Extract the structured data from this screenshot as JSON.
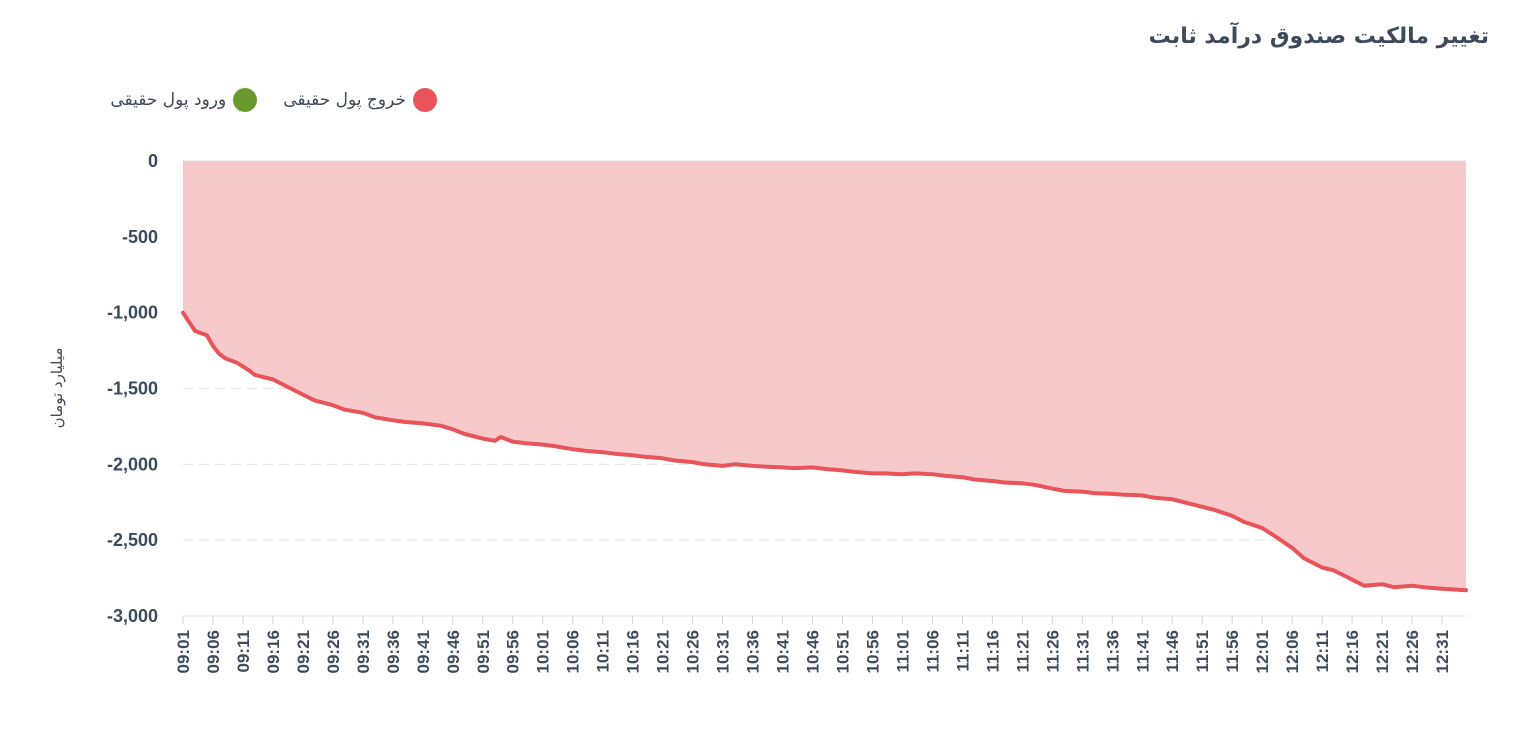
{
  "chart_data": {
    "type": "area",
    "title": "تغییر مالکیت صندوق درآمد ثابت",
    "ylabel": "میلیارد تومان",
    "xlabel": "",
    "ylim": [
      -3000,
      0
    ],
    "yticks": [
      0,
      -500,
      -1000,
      -1500,
      -2000,
      -2500,
      -3000
    ],
    "ytick_labels": [
      "0",
      "-500",
      "-1,000",
      "-1,500",
      "-2,000",
      "-2,500",
      "-3,000"
    ],
    "grid": true,
    "legend_position": "top-left",
    "x_start": "09:01",
    "x_end": "12:35",
    "x_tick_labels": [
      "09:01",
      "09:06",
      "09:11",
      "09:16",
      "09:21",
      "09:26",
      "09:31",
      "09:36",
      "09:41",
      "09:46",
      "09:51",
      "09:56",
      "10:01",
      "10:06",
      "10:11",
      "10:16",
      "10:21",
      "10:26",
      "10:31",
      "10:36",
      "10:41",
      "10:46",
      "10:51",
      "10:56",
      "11:01",
      "11:06",
      "11:11",
      "11:16",
      "11:21",
      "11:26",
      "11:31",
      "11:36",
      "11:41",
      "11:46",
      "11:51",
      "11:56",
      "12:01",
      "12:06",
      "12:11",
      "12:16",
      "12:21",
      "12:26",
      "12:31"
    ],
    "series": [
      {
        "name": "خروج پول حقیقی",
        "color": "#e8545a",
        "fill": "#f7c9ca",
        "x": [
          "09:01",
          "09:02",
          "09:03",
          "09:05",
          "09:06",
          "09:07",
          "09:08",
          "09:10",
          "09:12",
          "09:13",
          "09:16",
          "09:18",
          "09:21",
          "09:23",
          "09:26",
          "09:28",
          "09:31",
          "09:33",
          "09:36",
          "09:38",
          "09:41",
          "09:44",
          "09:46",
          "09:48",
          "09:51",
          "09:53",
          "09:54",
          "09:56",
          "09:58",
          "10:01",
          "10:03",
          "10:06",
          "10:08",
          "10:11",
          "10:13",
          "10:16",
          "10:18",
          "10:21",
          "10:23",
          "10:26",
          "10:28",
          "10:31",
          "10:33",
          "10:36",
          "10:38",
          "10:41",
          "10:43",
          "10:46",
          "10:48",
          "10:51",
          "10:53",
          "10:56",
          "10:58",
          "11:01",
          "11:03",
          "11:06",
          "11:08",
          "11:11",
          "11:13",
          "11:16",
          "11:18",
          "11:21",
          "11:23",
          "11:26",
          "11:28",
          "11:31",
          "11:33",
          "11:36",
          "11:38",
          "11:41",
          "11:43",
          "11:46",
          "11:48",
          "11:51",
          "11:53",
          "11:56",
          "11:58",
          "12:01",
          "12:03",
          "12:06",
          "12:08",
          "12:11",
          "12:13",
          "12:16",
          "12:18",
          "12:21",
          "12:23",
          "12:26",
          "12:28",
          "12:31",
          "12:33",
          "12:35"
        ],
        "values": [
          -1000,
          -1060,
          -1120,
          -1150,
          -1220,
          -1270,
          -1300,
          -1330,
          -1380,
          -1410,
          -1440,
          -1480,
          -1540,
          -1580,
          -1610,
          -1640,
          -1660,
          -1690,
          -1710,
          -1720,
          -1730,
          -1745,
          -1770,
          -1800,
          -1830,
          -1845,
          -1820,
          -1850,
          -1860,
          -1870,
          -1880,
          -1900,
          -1910,
          -1920,
          -1930,
          -1940,
          -1950,
          -1960,
          -1975,
          -1985,
          -2000,
          -2010,
          -2000,
          -2010,
          -2015,
          -2020,
          -2025,
          -2020,
          -2030,
          -2040,
          -2050,
          -2060,
          -2060,
          -2065,
          -2060,
          -2065,
          -2075,
          -2085,
          -2100,
          -2110,
          -2120,
          -2125,
          -2135,
          -2160,
          -2175,
          -2180,
          -2190,
          -2195,
          -2200,
          -2205,
          -2220,
          -2230,
          -2250,
          -2280,
          -2300,
          -2340,
          -2380,
          -2420,
          -2470,
          -2550,
          -2620,
          -2680,
          -2700,
          -2760,
          -2800,
          -2790,
          -2810,
          -2800,
          -2810,
          -2820,
          -2825,
          -2830
        ]
      },
      {
        "name": "ورود پول حقیقی",
        "color": "#6a9a2e",
        "values": []
      }
    ]
  }
}
